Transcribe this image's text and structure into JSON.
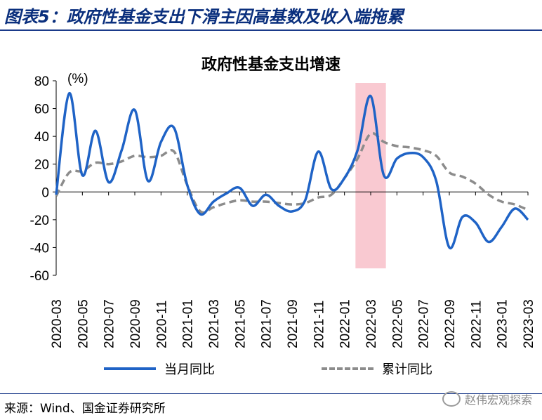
{
  "figure": {
    "title": "图表5：政府性基金支出下滑主因高基数及收入端拖累",
    "source": "来源：Wind、国金证券研究所",
    "watermark": "赵伟宏观探索"
  },
  "colors": {
    "title": "#0a2f7d",
    "series_monthly": "#1f63c6",
    "series_cumulative": "#8c8c8c",
    "highlight": "#f9c9d1"
  },
  "chart_data": {
    "type": "line",
    "title": "政府性基金支出增速",
    "ylabel": "(%)",
    "ylim": [
      -60,
      80
    ],
    "yticks": [
      80,
      60,
      40,
      20,
      0,
      -20,
      -40,
      -60
    ],
    "x": [
      "2020-03",
      "2020-04",
      "2020-05",
      "2020-06",
      "2020-07",
      "2020-08",
      "2020-09",
      "2020-10",
      "2020-11",
      "2020-12",
      "2021-01",
      "2021-02",
      "2021-03",
      "2021-04",
      "2021-05",
      "2021-06",
      "2021-07",
      "2021-08",
      "2021-09",
      "2021-10",
      "2021-11",
      "2021-12",
      "2022-01",
      "2022-02",
      "2022-03",
      "2022-04",
      "2022-05",
      "2022-06",
      "2022-07",
      "2022-08",
      "2022-09",
      "2022-10",
      "2022-11",
      "2022-12",
      "2023-01",
      "2023-02",
      "2023-03"
    ],
    "xtick_labels": [
      "2020-03",
      "2020-05",
      "2020-07",
      "2020-09",
      "2020-11",
      "2021-01",
      "2021-03",
      "2021-05",
      "2021-07",
      "2021-09",
      "2021-11",
      "2022-01",
      "2022-03",
      "2022-05",
      "2022-07",
      "2022-09",
      "2022-11",
      "2023-01",
      "2023-03"
    ],
    "series": [
      {
        "name": "当月同比",
        "style": "solid",
        "values": [
          -2,
          71,
          12,
          44,
          7,
          30,
          59,
          8,
          36,
          46,
          5,
          -16,
          -7,
          -1,
          3,
          -10,
          -2,
          -10,
          -14,
          -6,
          29,
          2,
          10,
          30,
          69,
          12,
          24,
          28,
          25,
          8,
          -40,
          -18,
          -22,
          -36,
          -25,
          -12,
          -20
        ]
      },
      {
        "name": "累计同比",
        "style": "dashed",
        "values": [
          -3,
          14,
          15,
          21,
          20,
          22,
          26,
          25,
          26,
          29,
          5,
          -14,
          -11,
          -8,
          -6,
          -7,
          -7,
          -8,
          -9,
          -8,
          -4,
          -2,
          10,
          24,
          42,
          36,
          33,
          32,
          30,
          26,
          14,
          11,
          6,
          -2,
          -7,
          -9,
          -13
        ]
      }
    ],
    "highlight_range": [
      "2022-02",
      "2022-04"
    ],
    "legend": [
      "当月同比",
      "累计同比"
    ],
    "legend_position": "bottom"
  }
}
